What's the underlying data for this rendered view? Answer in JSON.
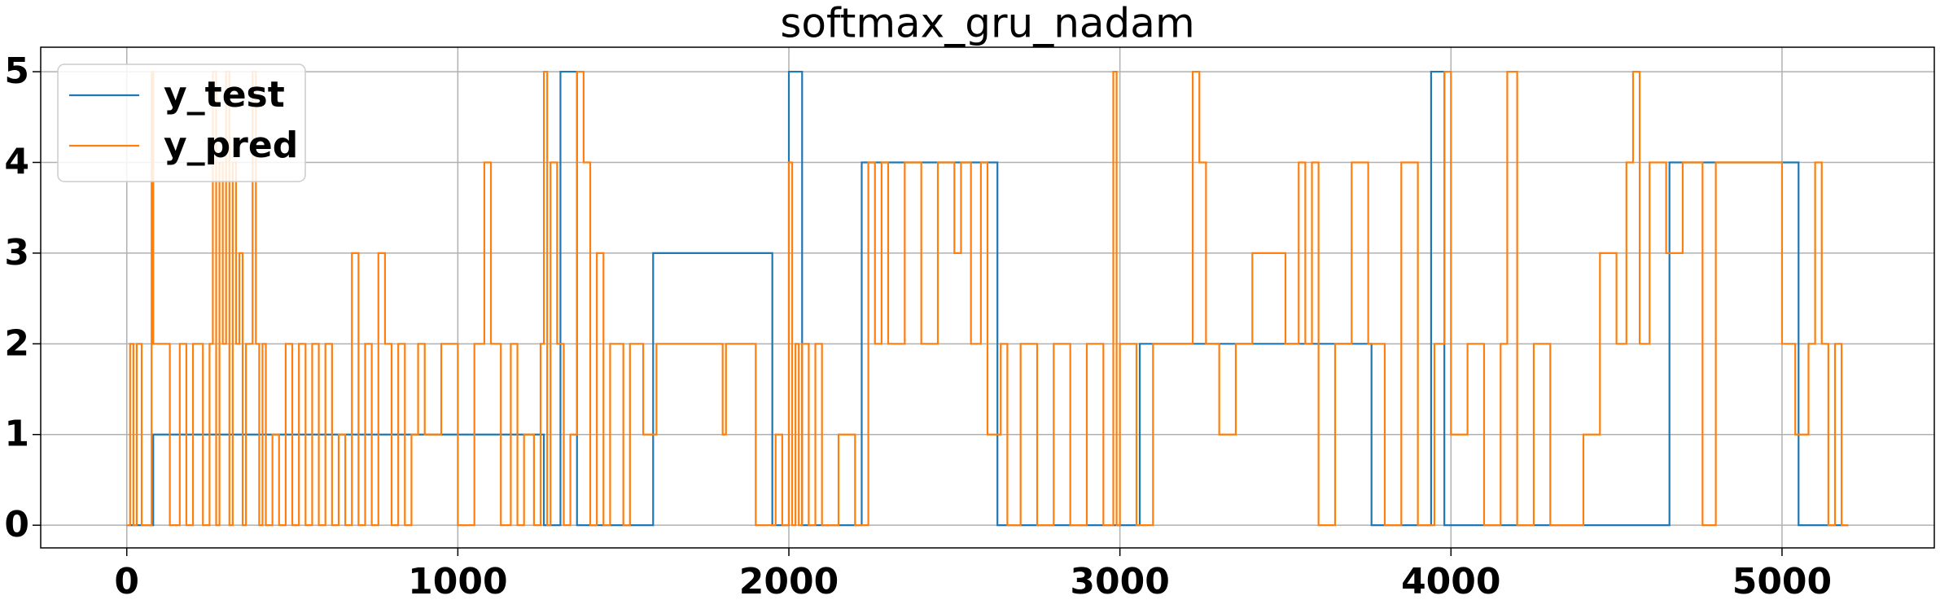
{
  "chart_data": {
    "type": "line",
    "title": "softmax_gru_nadam",
    "drawstyle": "steps-post",
    "grid": true,
    "legend": "upper left",
    "xlim": [
      -260,
      5460
    ],
    "ylim": [
      -0.25,
      5.27
    ],
    "xticks": [
      0,
      1000,
      2000,
      3000,
      4000,
      5000
    ],
    "yticks": [
      0,
      1,
      2,
      3,
      4,
      5
    ],
    "series": [
      {
        "name": "y_test",
        "color": "#1f77b4",
        "x": [
          0,
          80,
          1260,
          1310,
          1360,
          1590,
          1950,
          2000,
          2040,
          2220,
          2630,
          3060,
          3760,
          3940,
          3980,
          4660,
          5050,
          5200
        ],
        "values": [
          0,
          1,
          0,
          5,
          0,
          3,
          0,
          5,
          0,
          4,
          0,
          2,
          0,
          5,
          0,
          4,
          0,
          0
        ]
      },
      {
        "name": "y_pred",
        "color": "#ff7f0e",
        "x": [
          0,
          10,
          20,
          30,
          45,
          60,
          75,
          80,
          130,
          160,
          180,
          200,
          230,
          250,
          260,
          270,
          280,
          290,
          300,
          310,
          320,
          330,
          340,
          350,
          360,
          380,
          390,
          400,
          410,
          420,
          440,
          460,
          480,
          500,
          520,
          540,
          560,
          580,
          600,
          620,
          640,
          660,
          680,
          700,
          720,
          740,
          760,
          780,
          800,
          820,
          840,
          860,
          880,
          900,
          950,
          1000,
          1050,
          1080,
          1100,
          1130,
          1160,
          1180,
          1200,
          1230,
          1250,
          1260,
          1270,
          1280,
          1300,
          1320,
          1340,
          1360,
          1380,
          1400,
          1420,
          1440,
          1460,
          1500,
          1520,
          1560,
          1600,
          1700,
          1800,
          1810,
          1900,
          1960,
          1980,
          2000,
          2010,
          2020,
          2030,
          2040,
          2060,
          2080,
          2100,
          2150,
          2200,
          2240,
          2260,
          2280,
          2300,
          2350,
          2400,
          2450,
          2500,
          2520,
          2550,
          2580,
          2600,
          2640,
          2660,
          2700,
          2750,
          2800,
          2850,
          2900,
          2950,
          2980,
          2990,
          3000,
          3050,
          3100,
          3200,
          3220,
          3240,
          3260,
          3300,
          3350,
          3400,
          3500,
          3540,
          3560,
          3580,
          3600,
          3650,
          3700,
          3750,
          3800,
          3850,
          3900,
          3950,
          3980,
          4000,
          4050,
          4100,
          4150,
          4170,
          4200,
          4250,
          4300,
          4400,
          4450,
          4500,
          4530,
          4550,
          4570,
          4600,
          4650,
          4700,
          4760,
          4800,
          4900,
          5000,
          5040,
          5080,
          5100,
          5120,
          5140,
          5160,
          5180,
          5200
        ],
        "values": [
          0,
          2,
          0,
          2,
          0,
          0,
          5,
          2,
          0,
          2,
          0,
          2,
          0,
          2,
          5,
          0,
          4,
          2,
          5,
          0,
          4,
          2,
          3,
          0,
          2,
          5,
          2,
          0,
          2,
          0,
          1,
          0,
          2,
          0,
          2,
          0,
          2,
          0,
          2,
          0,
          1,
          0,
          3,
          0,
          2,
          0,
          3,
          2,
          0,
          2,
          0,
          1,
          2,
          1,
          2,
          0,
          2,
          4,
          2,
          0,
          2,
          0,
          1,
          0,
          2,
          5,
          0,
          4,
          2,
          0,
          1,
          5,
          4,
          0,
          3,
          0,
          2,
          0,
          2,
          1,
          2,
          2,
          1,
          2,
          0,
          1,
          0,
          4,
          0,
          2,
          0,
          2,
          0,
          2,
          0,
          1,
          0,
          4,
          2,
          4,
          2,
          4,
          2,
          4,
          3,
          4,
          2,
          4,
          1,
          2,
          0,
          2,
          0,
          2,
          0,
          2,
          0,
          5,
          0,
          2,
          0,
          2,
          2,
          5,
          4,
          2,
          1,
          2,
          3,
          2,
          4,
          2,
          4,
          0,
          2,
          4,
          2,
          0,
          4,
          0,
          2,
          5,
          1,
          2,
          0,
          2,
          5,
          0,
          2,
          0,
          1,
          3,
          2,
          4,
          5,
          2,
          4,
          3,
          4,
          0,
          4,
          4,
          2,
          1,
          2,
          4,
          2,
          0,
          2,
          0,
          0
        ]
      }
    ]
  }
}
